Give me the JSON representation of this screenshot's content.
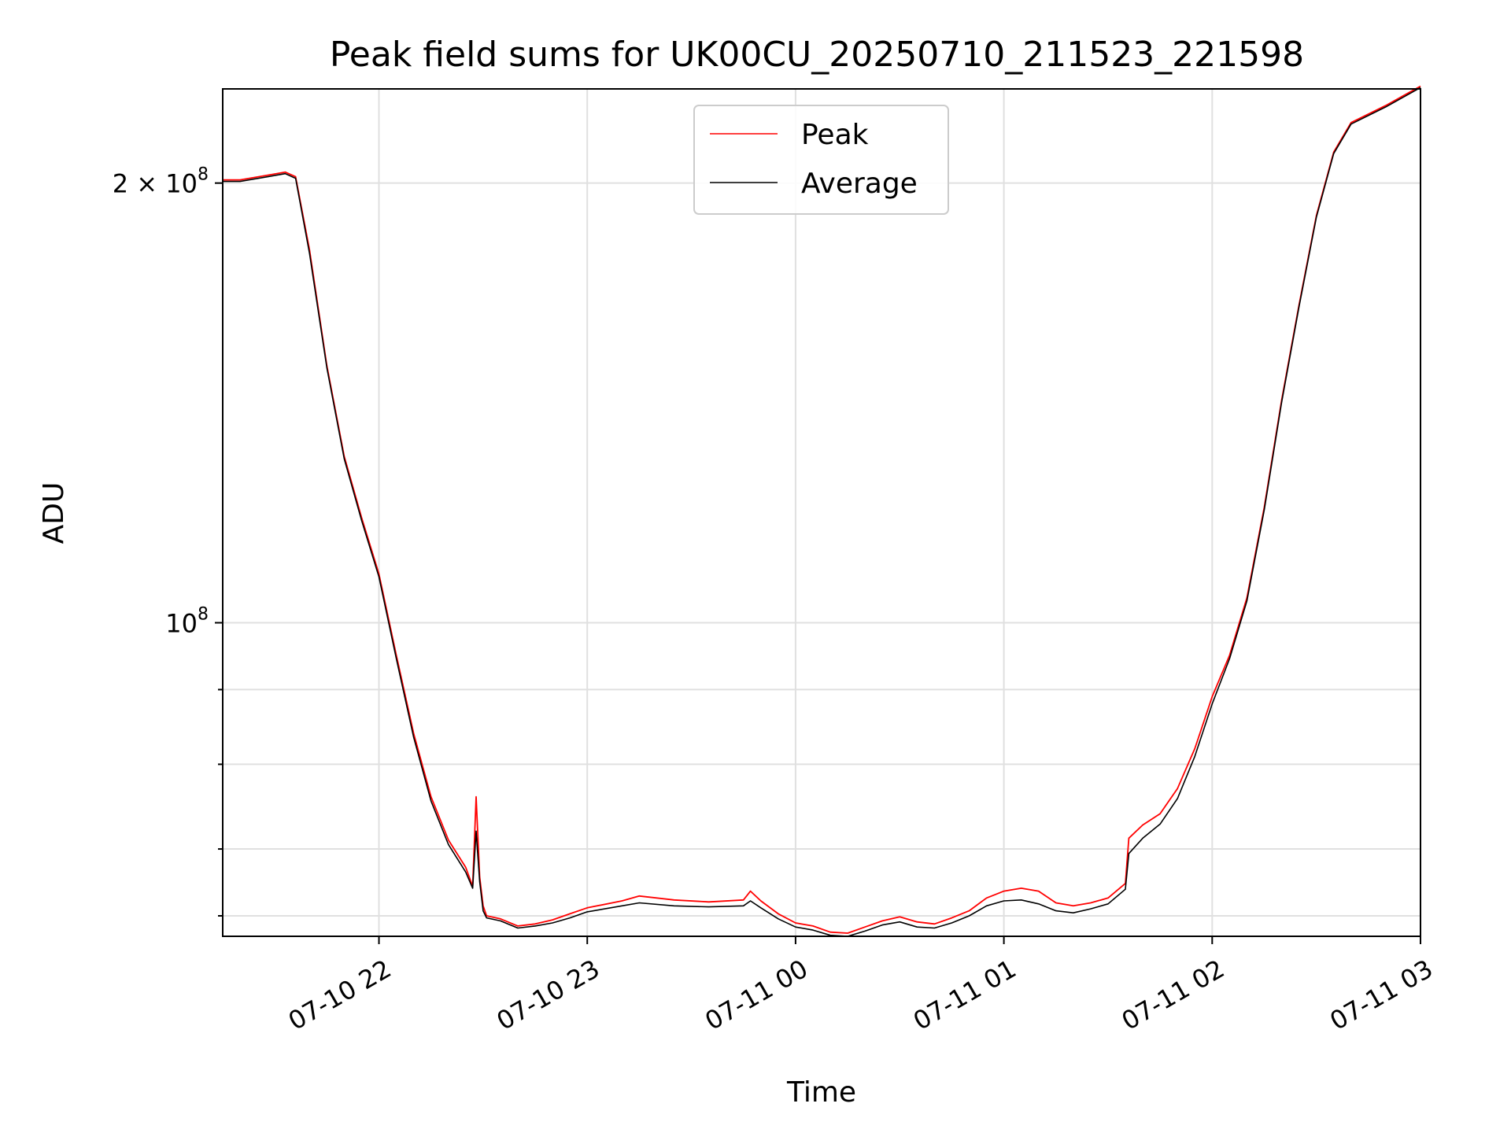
{
  "chart_data": {
    "type": "line",
    "title": "Peak field sums for UK00CU_20250710_211523_221598",
    "xlabel": "Time",
    "ylabel": "ADU",
    "y_scale": "log",
    "xlim": [
      "2025-07-10 21:15",
      "2025-07-11 03:00"
    ],
    "ylim": [
      61000000.0,
      232000000.0
    ],
    "x_ticks": [
      {
        "value": "2025-07-10 22:00",
        "label": "07-10 22"
      },
      {
        "value": "2025-07-10 23:00",
        "label": "07-10 23"
      },
      {
        "value": "2025-07-11 00:00",
        "label": "07-11 00"
      },
      {
        "value": "2025-07-11 01:00",
        "label": "07-11 01"
      },
      {
        "value": "2025-07-11 02:00",
        "label": "07-11 02"
      },
      {
        "value": "2025-07-11 03:00",
        "label": "07-11 03"
      }
    ],
    "y_major_ticks": [
      {
        "value": 100000000,
        "label_base": "10",
        "label_exp": "8"
      },
      {
        "value": 200000000,
        "label_base": "2 × 10",
        "label_exp": "8"
      }
    ],
    "y_minor_ticks": [
      63000000,
      70000000,
      80000000,
      90000000
    ],
    "grid": true,
    "legend_position": "top-center",
    "colors": {
      "peak": "#ff0000",
      "average": "#000000"
    },
    "series": [
      {
        "name": "Peak",
        "x": [
          "2025-07-10 21:15",
          "2025-07-10 21:20",
          "2025-07-10 21:28",
          "2025-07-10 21:33",
          "2025-07-10 21:36",
          "2025-07-10 21:40",
          "2025-07-10 21:45",
          "2025-07-10 21:50",
          "2025-07-10 21:55",
          "2025-07-10 22:00",
          "2025-07-10 22:05",
          "2025-07-10 22:10",
          "2025-07-10 22:15",
          "2025-07-10 22:20",
          "2025-07-10 22:25",
          "2025-07-10 22:27",
          "2025-07-10 22:28",
          "2025-07-10 22:29",
          "2025-07-10 22:30",
          "2025-07-10 22:31",
          "2025-07-10 22:35",
          "2025-07-10 22:40",
          "2025-07-10 22:45",
          "2025-07-10 22:50",
          "2025-07-10 22:55",
          "2025-07-10 23:00",
          "2025-07-10 23:10",
          "2025-07-10 23:15",
          "2025-07-10 23:25",
          "2025-07-10 23:35",
          "2025-07-10 23:45",
          "2025-07-10 23:47",
          "2025-07-10 23:50",
          "2025-07-10 23:55",
          "2025-07-11 00:00",
          "2025-07-11 00:05",
          "2025-07-11 00:10",
          "2025-07-11 00:15",
          "2025-07-11 00:20",
          "2025-07-11 00:25",
          "2025-07-11 00:30",
          "2025-07-11 00:35",
          "2025-07-11 00:40",
          "2025-07-11 00:45",
          "2025-07-11 00:50",
          "2025-07-11 00:55",
          "2025-07-11 01:00",
          "2025-07-11 01:05",
          "2025-07-11 01:10",
          "2025-07-11 01:15",
          "2025-07-11 01:20",
          "2025-07-11 01:25",
          "2025-07-11 01:30",
          "2025-07-11 01:35",
          "2025-07-11 01:36",
          "2025-07-11 01:40",
          "2025-07-11 01:45",
          "2025-07-11 01:50",
          "2025-07-11 01:55",
          "2025-07-11 02:00",
          "2025-07-11 02:05",
          "2025-07-11 02:10",
          "2025-07-11 02:15",
          "2025-07-11 02:20",
          "2025-07-11 02:25",
          "2025-07-11 02:30",
          "2025-07-11 02:35",
          "2025-07-11 02:40",
          "2025-07-11 02:50",
          "2025-07-11 03:00"
        ],
        "values": [
          201000000,
          201000000,
          202500000,
          203500000,
          202000000,
          180000000,
          150000000,
          130000000,
          118000000,
          108000000,
          95000000,
          84000000,
          76000000,
          71000000,
          68000000,
          66000000,
          76000000,
          67000000,
          64000000,
          63000000,
          62700000,
          62000000,
          62200000,
          62600000,
          63200000,
          63800000,
          64500000,
          65000000,
          64600000,
          64400000,
          64600000,
          65500000,
          64500000,
          63200000,
          62300000,
          62000000,
          61400000,
          61300000,
          61900000,
          62500000,
          62900000,
          62400000,
          62200000,
          62800000,
          63500000,
          64800000,
          65500000,
          65800000,
          65500000,
          64300000,
          64000000,
          64300000,
          64800000,
          66300000,
          71200000,
          72700000,
          74000000,
          77000000,
          82000000,
          89000000,
          95000000,
          104000000,
          120000000,
          142000000,
          165000000,
          190000000,
          210000000,
          220000000,
          226000000,
          233000000
        ]
      },
      {
        "name": "Average",
        "x": [
          "2025-07-10 21:15",
          "2025-07-10 21:20",
          "2025-07-10 21:28",
          "2025-07-10 21:33",
          "2025-07-10 21:36",
          "2025-07-10 21:40",
          "2025-07-10 21:45",
          "2025-07-10 21:50",
          "2025-07-10 21:55",
          "2025-07-10 22:00",
          "2025-07-10 22:05",
          "2025-07-10 22:10",
          "2025-07-10 22:15",
          "2025-07-10 22:20",
          "2025-07-10 22:25",
          "2025-07-10 22:27",
          "2025-07-10 22:28",
          "2025-07-10 22:29",
          "2025-07-10 22:30",
          "2025-07-10 22:31",
          "2025-07-10 22:35",
          "2025-07-10 22:40",
          "2025-07-10 22:45",
          "2025-07-10 22:50",
          "2025-07-10 22:55",
          "2025-07-10 23:00",
          "2025-07-10 23:10",
          "2025-07-10 23:15",
          "2025-07-10 23:25",
          "2025-07-10 23:35",
          "2025-07-10 23:45",
          "2025-07-10 23:47",
          "2025-07-10 23:50",
          "2025-07-10 23:55",
          "2025-07-11 00:00",
          "2025-07-11 00:05",
          "2025-07-11 00:10",
          "2025-07-11 00:15",
          "2025-07-11 00:20",
          "2025-07-11 00:25",
          "2025-07-11 00:30",
          "2025-07-11 00:35",
          "2025-07-11 00:40",
          "2025-07-11 00:45",
          "2025-07-11 00:50",
          "2025-07-11 00:55",
          "2025-07-11 01:00",
          "2025-07-11 01:05",
          "2025-07-11 01:10",
          "2025-07-11 01:15",
          "2025-07-11 01:20",
          "2025-07-11 01:25",
          "2025-07-11 01:30",
          "2025-07-11 01:35",
          "2025-07-11 01:36",
          "2025-07-11 01:40",
          "2025-07-11 01:45",
          "2025-07-11 01:50",
          "2025-07-11 01:55",
          "2025-07-11 02:00",
          "2025-07-11 02:05",
          "2025-07-11 02:10",
          "2025-07-11 02:15",
          "2025-07-11 02:20",
          "2025-07-11 02:25",
          "2025-07-11 02:30",
          "2025-07-11 02:35",
          "2025-07-11 02:40",
          "2025-07-11 02:50",
          "2025-07-11 03:00"
        ],
        "values": [
          200500000,
          200500000,
          202000000,
          203000000,
          201500000,
          179000000,
          149500000,
          129500000,
          117500000,
          107500000,
          94500000,
          83500000,
          75500000,
          70500000,
          67500000,
          65800000,
          72000000,
          66500000,
          63500000,
          62800000,
          62500000,
          61800000,
          62000000,
          62300000,
          62800000,
          63400000,
          64000000,
          64300000,
          64000000,
          63900000,
          64000000,
          64500000,
          63800000,
          62700000,
          61900000,
          61600000,
          61100000,
          61000000,
          61500000,
          62100000,
          62400000,
          61900000,
          61800000,
          62300000,
          63000000,
          64000000,
          64500000,
          64600000,
          64200000,
          63500000,
          63300000,
          63700000,
          64200000,
          65700000,
          69500000,
          71200000,
          72800000,
          75800000,
          81000000,
          88000000,
          94500000,
          103500000,
          119500000,
          141500000,
          164500000,
          189500000,
          209500000,
          219500000,
          225500000,
          232500000
        ]
      }
    ]
  }
}
